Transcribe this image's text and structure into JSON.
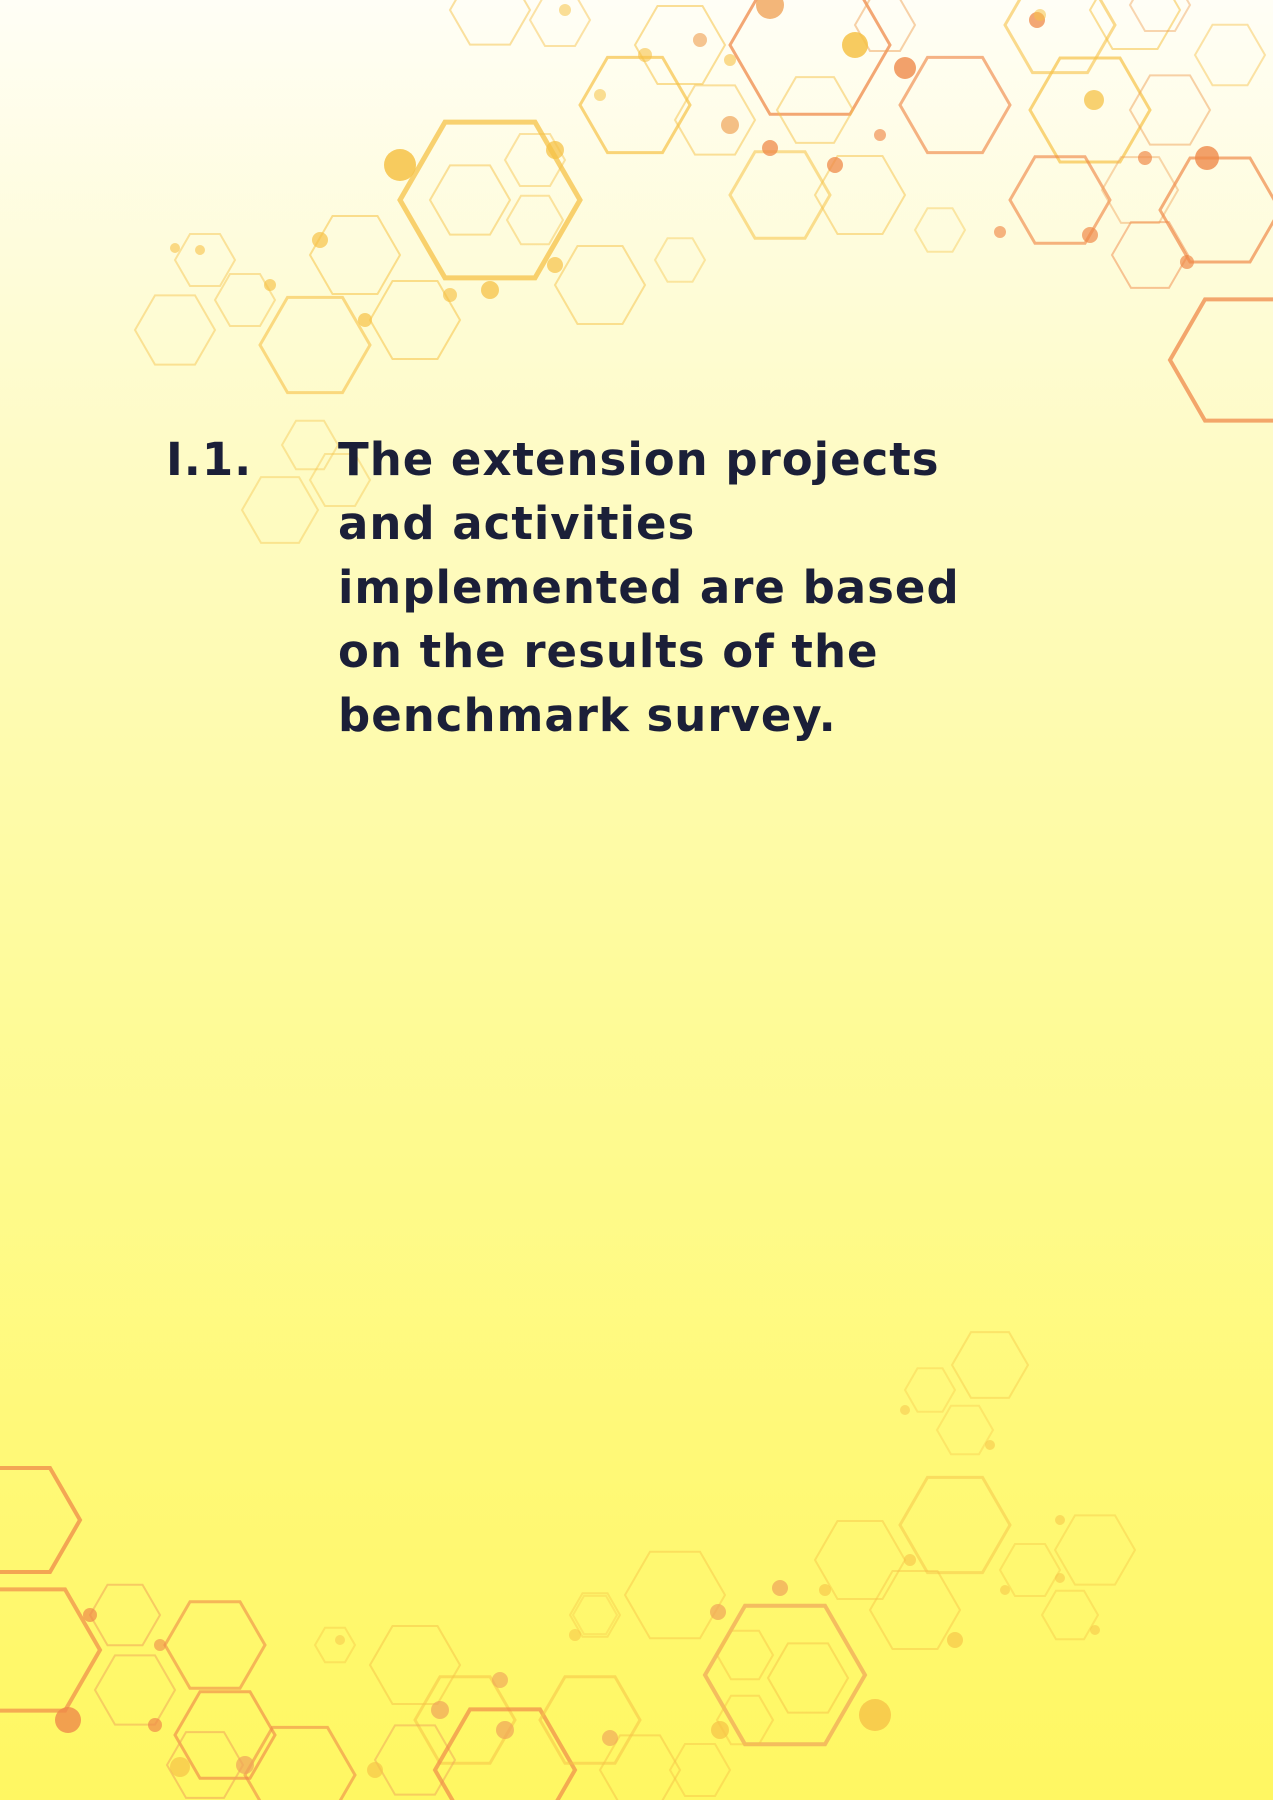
{
  "page": {
    "background_colors": [
      "#fffef6",
      "#fefbc6",
      "#fefb9a",
      "#fff978",
      "#fff762"
    ],
    "accent_colors": [
      "#f6c247",
      "#f0a45a",
      "#ef8a4a"
    ]
  },
  "decoration": {
    "top_pattern": "hexagon-network",
    "bottom_pattern": "hexagon-network"
  },
  "item": {
    "number": "I.1.",
    "text": "The extension projects and activities implemented are based on the results of the benchmark survey."
  }
}
